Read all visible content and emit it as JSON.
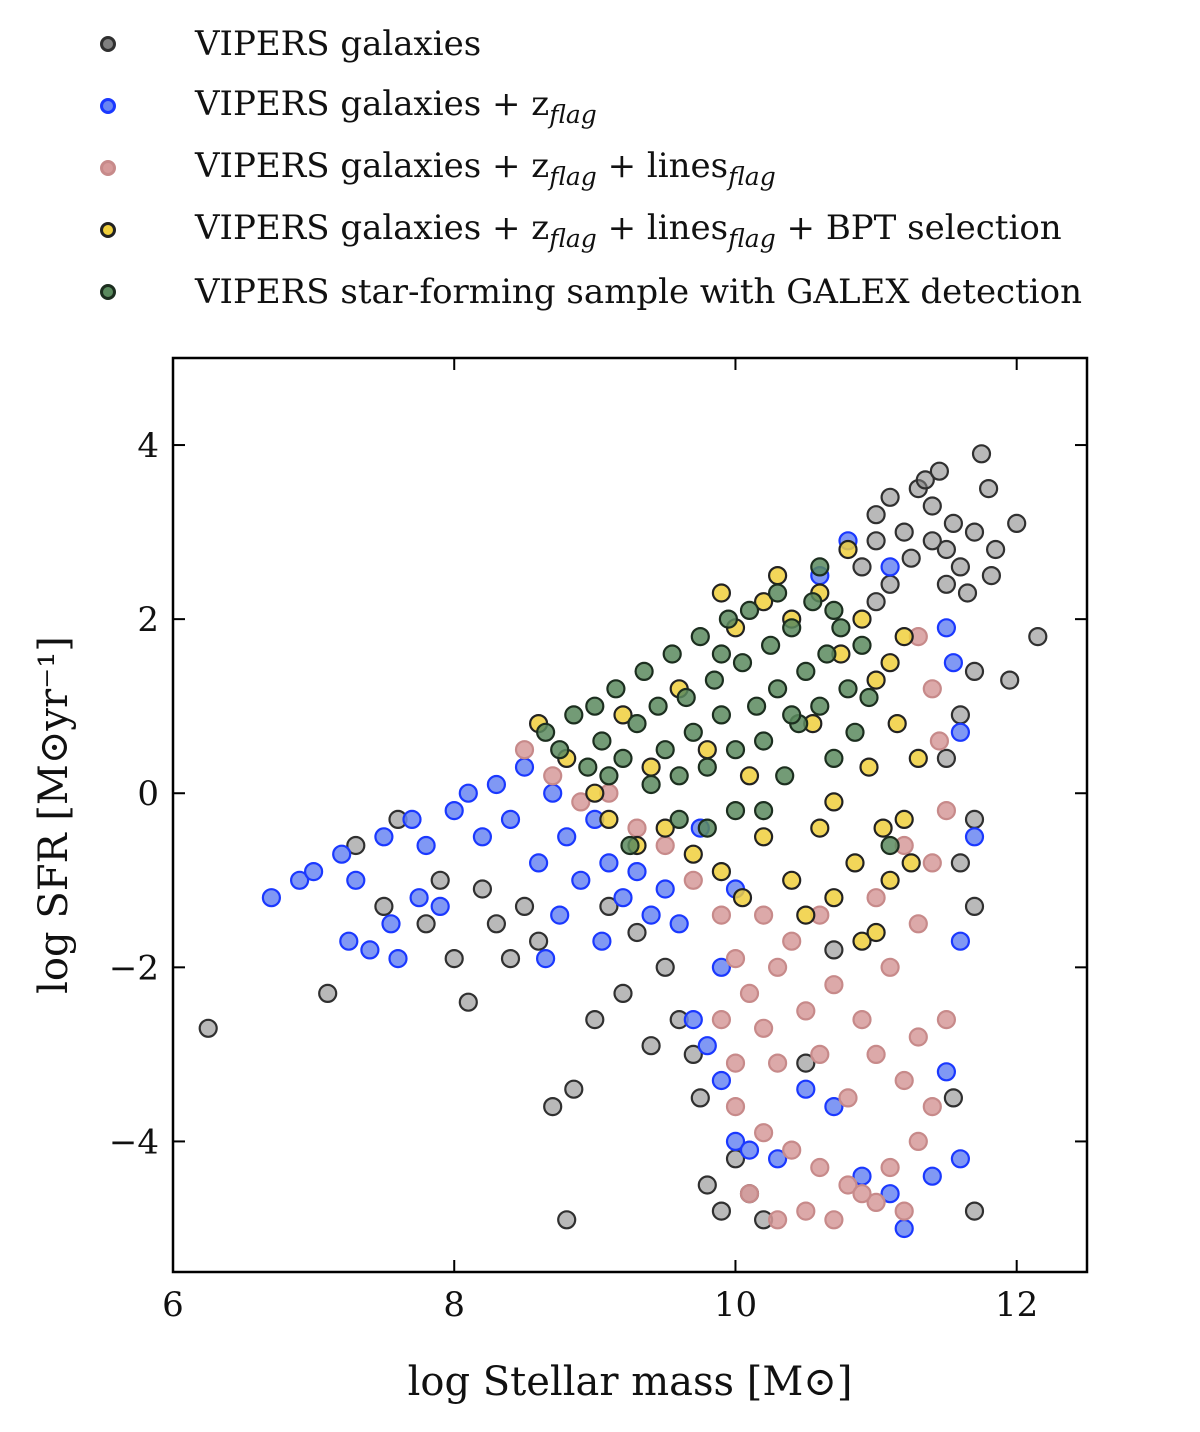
{
  "chart_data": {
    "type": "scatter",
    "title": "",
    "xlabel": "log Stellar mass [M⊙]",
    "ylabel": "log SFR [M⊙yr⁻¹]",
    "xlim": [
      6.0,
      12.5
    ],
    "ylim": [
      -5.5,
      5.0
    ],
    "x_ticks": [
      6,
      8,
      10,
      12
    ],
    "y_ticks": [
      -4,
      -2,
      0,
      2,
      4
    ],
    "x_tick_labels": [
      "6",
      "8",
      "10",
      "12"
    ],
    "y_tick_labels": [
      "−4",
      "−2",
      "0",
      "2",
      "4"
    ],
    "grid": false,
    "legend_position": "top",
    "series": [
      {
        "name": "VIPERS galaxies",
        "color": "#808080",
        "edge_color": "#303030",
        "points": [
          [
            6.25,
            -2.7
          ],
          [
            7.1,
            -2.3
          ],
          [
            7.3,
            -0.6
          ],
          [
            7.5,
            -1.3
          ],
          [
            7.6,
            -0.3
          ],
          [
            7.8,
            -1.5
          ],
          [
            7.9,
            -1.0
          ],
          [
            8.0,
            -1.9
          ],
          [
            8.1,
            -2.4
          ],
          [
            8.2,
            -1.1
          ],
          [
            8.3,
            -1.5
          ],
          [
            8.4,
            -1.9
          ],
          [
            8.5,
            -1.3
          ],
          [
            8.6,
            -1.7
          ],
          [
            8.7,
            -3.6
          ],
          [
            8.8,
            -4.9
          ],
          [
            8.85,
            -3.4
          ],
          [
            9.0,
            -2.6
          ],
          [
            9.1,
            -1.3
          ],
          [
            9.2,
            -2.3
          ],
          [
            9.3,
            -1.6
          ],
          [
            9.4,
            -2.9
          ],
          [
            9.5,
            -2.0
          ],
          [
            9.6,
            -2.6
          ],
          [
            9.7,
            -3.0
          ],
          [
            9.75,
            -3.5
          ],
          [
            9.8,
            -4.5
          ],
          [
            9.9,
            -4.8
          ],
          [
            10.0,
            -4.2
          ],
          [
            10.1,
            -4.6
          ],
          [
            10.2,
            -4.9
          ],
          [
            10.5,
            -3.1
          ],
          [
            10.7,
            -1.8
          ],
          [
            11.0,
            3.2
          ],
          [
            11.1,
            3.4
          ],
          [
            11.2,
            3.0
          ],
          [
            11.3,
            3.5
          ],
          [
            11.35,
            3.6
          ],
          [
            11.4,
            3.3
          ],
          [
            11.45,
            3.7
          ],
          [
            11.5,
            2.8
          ],
          [
            11.55,
            3.1
          ],
          [
            11.6,
            2.6
          ],
          [
            11.65,
            2.3
          ],
          [
            11.7,
            3.0
          ],
          [
            11.75,
            3.9
          ],
          [
            11.8,
            3.5
          ],
          [
            11.82,
            2.5
          ],
          [
            11.85,
            2.8
          ],
          [
            12.0,
            3.1
          ],
          [
            12.15,
            1.8
          ],
          [
            11.95,
            1.3
          ],
          [
            11.7,
            1.4
          ],
          [
            11.6,
            0.9
          ],
          [
            11.5,
            0.4
          ],
          [
            11.7,
            -0.3
          ],
          [
            11.6,
            -0.8
          ],
          [
            11.7,
            -1.3
          ],
          [
            11.55,
            -3.5
          ],
          [
            11.7,
            -4.8
          ],
          [
            10.9,
            2.6
          ],
          [
            11.0,
            2.9
          ],
          [
            11.25,
            2.7
          ],
          [
            11.4,
            2.9
          ],
          [
            11.5,
            2.4
          ],
          [
            11.1,
            2.4
          ],
          [
            11.0,
            2.2
          ]
        ]
      },
      {
        "name": "VIPERS galaxies + z",
        "name_sub": "flag",
        "color": "#6a86f2",
        "edge_color": "#1a38ff",
        "points": [
          [
            6.7,
            -1.2
          ],
          [
            6.9,
            -1.0
          ],
          [
            7.0,
            -0.9
          ],
          [
            7.2,
            -0.7
          ],
          [
            7.25,
            -1.7
          ],
          [
            7.3,
            -1.0
          ],
          [
            7.4,
            -1.8
          ],
          [
            7.5,
            -0.5
          ],
          [
            7.55,
            -1.5
          ],
          [
            7.6,
            -1.9
          ],
          [
            7.7,
            -0.3
          ],
          [
            7.75,
            -1.2
          ],
          [
            7.8,
            -0.6
          ],
          [
            7.9,
            -1.3
          ],
          [
            8.0,
            -0.2
          ],
          [
            8.1,
            0.0
          ],
          [
            8.2,
            -0.5
          ],
          [
            8.3,
            0.1
          ],
          [
            8.4,
            -0.3
          ],
          [
            8.5,
            0.3
          ],
          [
            8.6,
            -0.8
          ],
          [
            8.65,
            -1.9
          ],
          [
            8.7,
            0.0
          ],
          [
            8.75,
            -1.4
          ],
          [
            8.8,
            -0.5
          ],
          [
            8.9,
            -1.0
          ],
          [
            9.0,
            -0.3
          ],
          [
            9.05,
            -1.7
          ],
          [
            9.1,
            -0.8
          ],
          [
            9.2,
            -1.2
          ],
          [
            9.3,
            -0.9
          ],
          [
            9.4,
            -1.4
          ],
          [
            9.5,
            -1.1
          ],
          [
            9.6,
            -1.5
          ],
          [
            9.7,
            -2.6
          ],
          [
            9.8,
            -2.9
          ],
          [
            9.9,
            -3.3
          ],
          [
            10.0,
            -4.0
          ],
          [
            10.1,
            -4.1
          ],
          [
            10.3,
            -4.2
          ],
          [
            10.5,
            -3.4
          ],
          [
            10.7,
            -3.6
          ],
          [
            10.9,
            -4.4
          ],
          [
            11.1,
            -4.6
          ],
          [
            11.2,
            -5.0
          ],
          [
            11.4,
            -4.4
          ],
          [
            11.6,
            -4.2
          ],
          [
            11.5,
            -3.2
          ],
          [
            11.6,
            -1.7
          ],
          [
            11.7,
            -0.5
          ],
          [
            11.6,
            0.7
          ],
          [
            11.55,
            1.5
          ],
          [
            11.5,
            1.9
          ],
          [
            11.1,
            2.6
          ],
          [
            10.8,
            2.9
          ],
          [
            10.6,
            2.5
          ],
          [
            9.9,
            -2.0
          ],
          [
            10.0,
            -1.1
          ],
          [
            9.75,
            -0.4
          ]
        ]
      },
      {
        "name": "VIPERS galaxies + z",
        "name_sub": "flag",
        "name_mid": " + lines",
        "name_sub2": "flag",
        "color": "#d69a9a",
        "edge_color": "#c78a8a",
        "points": [
          [
            8.5,
            0.5
          ],
          [
            8.7,
            0.2
          ],
          [
            8.9,
            -0.1
          ],
          [
            9.1,
            0.0
          ],
          [
            9.3,
            -0.4
          ],
          [
            9.5,
            -0.6
          ],
          [
            9.7,
            -1.0
          ],
          [
            9.9,
            -1.4
          ],
          [
            10.0,
            -1.9
          ],
          [
            10.1,
            -2.3
          ],
          [
            10.2,
            -2.7
          ],
          [
            10.3,
            -3.1
          ],
          [
            10.0,
            -3.6
          ],
          [
            10.2,
            -3.9
          ],
          [
            10.4,
            -4.1
          ],
          [
            10.6,
            -4.3
          ],
          [
            10.8,
            -4.5
          ],
          [
            11.0,
            -4.7
          ],
          [
            11.2,
            -4.8
          ],
          [
            10.1,
            -4.6
          ],
          [
            10.3,
            -4.9
          ],
          [
            10.5,
            -4.8
          ],
          [
            10.7,
            -4.9
          ],
          [
            10.9,
            -4.6
          ],
          [
            11.1,
            -4.3
          ],
          [
            11.3,
            -4.0
          ],
          [
            11.4,
            -3.6
          ],
          [
            11.2,
            -3.3
          ],
          [
            11.0,
            -3.0
          ],
          [
            10.8,
            -3.5
          ],
          [
            10.6,
            -3.0
          ],
          [
            10.5,
            -2.5
          ],
          [
            10.7,
            -2.2
          ],
          [
            10.9,
            -2.6
          ],
          [
            11.1,
            -2.0
          ],
          [
            11.3,
            -1.5
          ],
          [
            11.4,
            -0.8
          ],
          [
            11.5,
            -0.2
          ],
          [
            11.45,
            0.6
          ],
          [
            11.4,
            1.2
          ],
          [
            11.3,
            1.8
          ],
          [
            10.4,
            -1.7
          ],
          [
            10.3,
            -2.0
          ],
          [
            10.6,
            -1.4
          ],
          [
            11.0,
            -1.2
          ],
          [
            11.2,
            -0.6
          ],
          [
            10.2,
            -1.4
          ],
          [
            9.9,
            -2.6
          ],
          [
            10.0,
            -3.1
          ],
          [
            11.5,
            -2.6
          ],
          [
            11.3,
            -2.8
          ]
        ]
      },
      {
        "name": "VIPERS galaxies + z",
        "name_sub": "flag",
        "name_mid": " + lines",
        "name_sub2": "flag",
        "name_tail": " + BPT selection",
        "color": "#f0cf3c",
        "edge_color": "#222222",
        "points": [
          [
            8.6,
            0.8
          ],
          [
            8.8,
            0.4
          ],
          [
            9.0,
            0.0
          ],
          [
            9.1,
            -0.3
          ],
          [
            9.2,
            0.9
          ],
          [
            9.3,
            -0.6
          ],
          [
            9.4,
            0.3
          ],
          [
            9.5,
            -0.4
          ],
          [
            9.6,
            1.2
          ],
          [
            9.7,
            -0.7
          ],
          [
            9.8,
            0.5
          ],
          [
            9.9,
            -0.9
          ],
          [
            10.0,
            1.9
          ],
          [
            10.05,
            -1.2
          ],
          [
            10.1,
            0.2
          ],
          [
            10.2,
            -0.5
          ],
          [
            10.3,
            2.5
          ],
          [
            10.4,
            -1.0
          ],
          [
            10.5,
            -1.4
          ],
          [
            10.55,
            0.8
          ],
          [
            10.6,
            -0.4
          ],
          [
            10.7,
            -1.2
          ],
          [
            10.75,
            1.6
          ],
          [
            10.8,
            2.8
          ],
          [
            10.85,
            -0.8
          ],
          [
            10.9,
            -1.7
          ],
          [
            10.95,
            0.3
          ],
          [
            11.0,
            -1.6
          ],
          [
            11.05,
            -0.4
          ],
          [
            11.1,
            1.5
          ],
          [
            11.15,
            0.8
          ],
          [
            11.2,
            -0.3
          ],
          [
            11.25,
            -0.8
          ],
          [
            11.3,
            0.4
          ],
          [
            11.2,
            1.8
          ],
          [
            11.0,
            1.3
          ],
          [
            10.9,
            2.0
          ],
          [
            10.6,
            2.3
          ],
          [
            10.4,
            2.0
          ],
          [
            10.2,
            2.2
          ],
          [
            9.9,
            2.3
          ],
          [
            11.1,
            -1.0
          ],
          [
            10.7,
            -0.1
          ]
        ]
      },
      {
        "name": "VIPERS star-forming sample with GALEX detection",
        "color": "#5a8a5e",
        "edge_color": "#1c2e1f",
        "points": [
          [
            8.65,
            0.7
          ],
          [
            8.75,
            0.5
          ],
          [
            8.85,
            0.9
          ],
          [
            8.95,
            0.3
          ],
          [
            9.0,
            1.0
          ],
          [
            9.05,
            0.6
          ],
          [
            9.1,
            0.2
          ],
          [
            9.15,
            1.2
          ],
          [
            9.2,
            0.4
          ],
          [
            9.25,
            -0.6
          ],
          [
            9.3,
            0.8
          ],
          [
            9.35,
            1.4
          ],
          [
            9.4,
            0.1
          ],
          [
            9.45,
            1.0
          ],
          [
            9.5,
            0.5
          ],
          [
            9.55,
            1.6
          ],
          [
            9.6,
            0.2
          ],
          [
            9.65,
            1.1
          ],
          [
            9.7,
            0.7
          ],
          [
            9.75,
            1.8
          ],
          [
            9.8,
            0.3
          ],
          [
            9.85,
            1.3
          ],
          [
            9.9,
            0.9
          ],
          [
            9.95,
            2.0
          ],
          [
            10.0,
            0.5
          ],
          [
            10.05,
            1.5
          ],
          [
            10.1,
            2.1
          ],
          [
            10.15,
            1.0
          ],
          [
            10.2,
            0.6
          ],
          [
            10.25,
            1.7
          ],
          [
            10.3,
            1.2
          ],
          [
            10.35,
            0.2
          ],
          [
            10.4,
            1.9
          ],
          [
            10.45,
            0.8
          ],
          [
            10.5,
            1.4
          ],
          [
            10.55,
            2.2
          ],
          [
            10.6,
            1.0
          ],
          [
            10.65,
            1.6
          ],
          [
            10.7,
            0.4
          ],
          [
            10.75,
            1.9
          ],
          [
            10.8,
            1.2
          ],
          [
            10.85,
            0.7
          ],
          [
            10.9,
            1.7
          ],
          [
            10.95,
            1.1
          ],
          [
            10.6,
            2.6
          ],
          [
            10.2,
            -0.2
          ],
          [
            9.8,
            -0.4
          ],
          [
            10.0,
            -0.2
          ],
          [
            9.6,
            -0.3
          ],
          [
            11.1,
            -0.6
          ],
          [
            10.4,
            0.9
          ],
          [
            9.9,
            1.6
          ],
          [
            10.7,
            2.1
          ],
          [
            10.3,
            2.3
          ]
        ]
      }
    ]
  }
}
